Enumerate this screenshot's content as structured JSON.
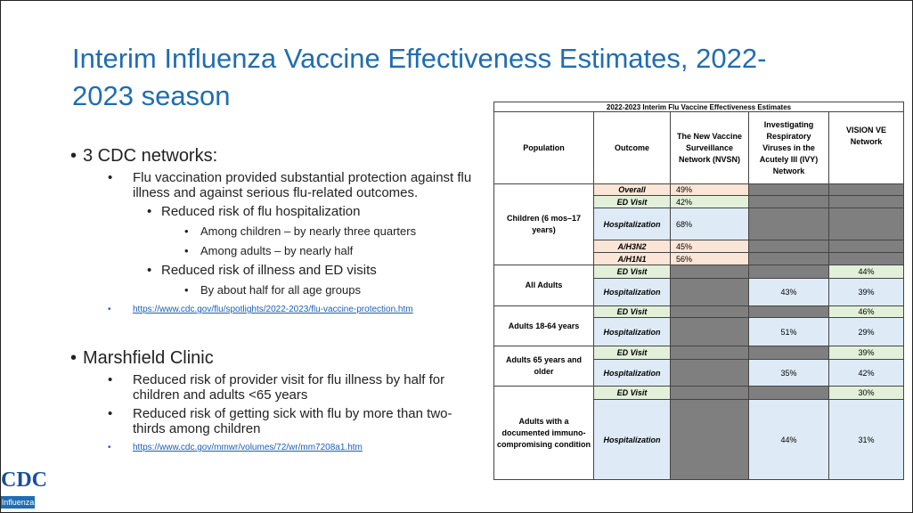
{
  "slide": {
    "title": "Interim Influenza Vaccine Effectiveness Estimates, 2022-2023 season",
    "bullets": [
      {
        "text": "3 CDC networks:",
        "children": [
          {
            "text": "Flu vaccination provided substantial protection against flu illness and against serious flu-related outcomes.",
            "children": [
              {
                "text": "Reduced risk of flu hospitalization",
                "children": [
                  {
                    "text": "Among children – by nearly three quarters"
                  },
                  {
                    "text": "Among adults – by nearly half"
                  }
                ]
              },
              {
                "text": "Reduced risk of illness and ED visits",
                "children": [
                  {
                    "text": "By about half for all age groups"
                  }
                ]
              }
            ]
          },
          {
            "text": "https://www.cdc.gov/flu/spotlights/2022-2023/flu-vaccine-protection.htm",
            "link": true
          }
        ]
      },
      {
        "text": "Marshfield Clinic",
        "children": [
          {
            "text": "Reduced risk of provider visit for flu illness by half for children and adults  <65 years"
          },
          {
            "text": "Reduced risk of getting sick with flu by more than two-thirds among children"
          },
          {
            "text": "https://www.cdc.gov/mmwr/volumes/72/wr/mm7208a1.htm",
            "link": true
          }
        ]
      }
    ],
    "logo": {
      "text": "CDC",
      "caption": "Influenza"
    }
  },
  "table": {
    "title": "2022-2023 Interim Flu Vaccine Effectiveness Estimates",
    "header": [
      "Population",
      "Outcome",
      "The New Vaccine Surveillance Network (NVSN)",
      "Investigating Respiratory Viruses in the Acutely Ill (IVY) Network",
      "VISION VE Network"
    ],
    "groups": [
      {
        "population": "Children (6 mos–17 years)",
        "rows": [
          {
            "outcome": "Overall",
            "color": "#fbe5d6",
            "cells": [
              "49%",
              null,
              null
            ]
          },
          {
            "outcome": "ED Visit",
            "color": "#e2f0d9",
            "cells": [
              "42%",
              null,
              null
            ]
          },
          {
            "outcome": "Hospitalization",
            "color": "#deebf7",
            "cells": [
              "68%",
              null,
              null
            ]
          },
          {
            "outcome": "A/H3N2",
            "color": "#fbe5d6",
            "cells": [
              "45%",
              null,
              null
            ]
          },
          {
            "outcome": "A/H1N1",
            "color": "#fbe5d6",
            "cells": [
              "56%",
              null,
              null
            ]
          }
        ]
      },
      {
        "population": "All Adults",
        "rows": [
          {
            "outcome": "ED Visit",
            "color": "#e2f0d9",
            "cells": [
              null,
              null,
              "44%"
            ]
          },
          {
            "outcome": "Hospitalization",
            "color": "#deebf7",
            "cells": [
              null,
              "43%",
              "39%"
            ]
          }
        ]
      },
      {
        "population": "Adults 18-64 years",
        "rows": [
          {
            "outcome": "ED Visit",
            "color": "#e2f0d9",
            "cells": [
              null,
              null,
              "46%"
            ]
          },
          {
            "outcome": "Hospitalization",
            "color": "#deebf7",
            "cells": [
              null,
              "51%",
              "29%"
            ]
          }
        ]
      },
      {
        "population": "Adults 65 years and older",
        "rows": [
          {
            "outcome": "ED Visit",
            "color": "#e2f0d9",
            "cells": [
              null,
              null,
              "39%"
            ]
          },
          {
            "outcome": "Hospitalization",
            "color": "#deebf7",
            "cells": [
              null,
              "35%",
              "42%"
            ]
          }
        ]
      },
      {
        "population": "Adults with a documented immuno-compromising condition",
        "rows": [
          {
            "outcome": "ED Visit",
            "color": "#e2f0d9",
            "cells": [
              null,
              null,
              "30%"
            ]
          },
          {
            "outcome": "Hospitalization",
            "color": "#deebf7",
            "cells": [
              null,
              "44%",
              "31%"
            ]
          }
        ]
      }
    ],
    "blank_color": "#7f7f7f"
  }
}
